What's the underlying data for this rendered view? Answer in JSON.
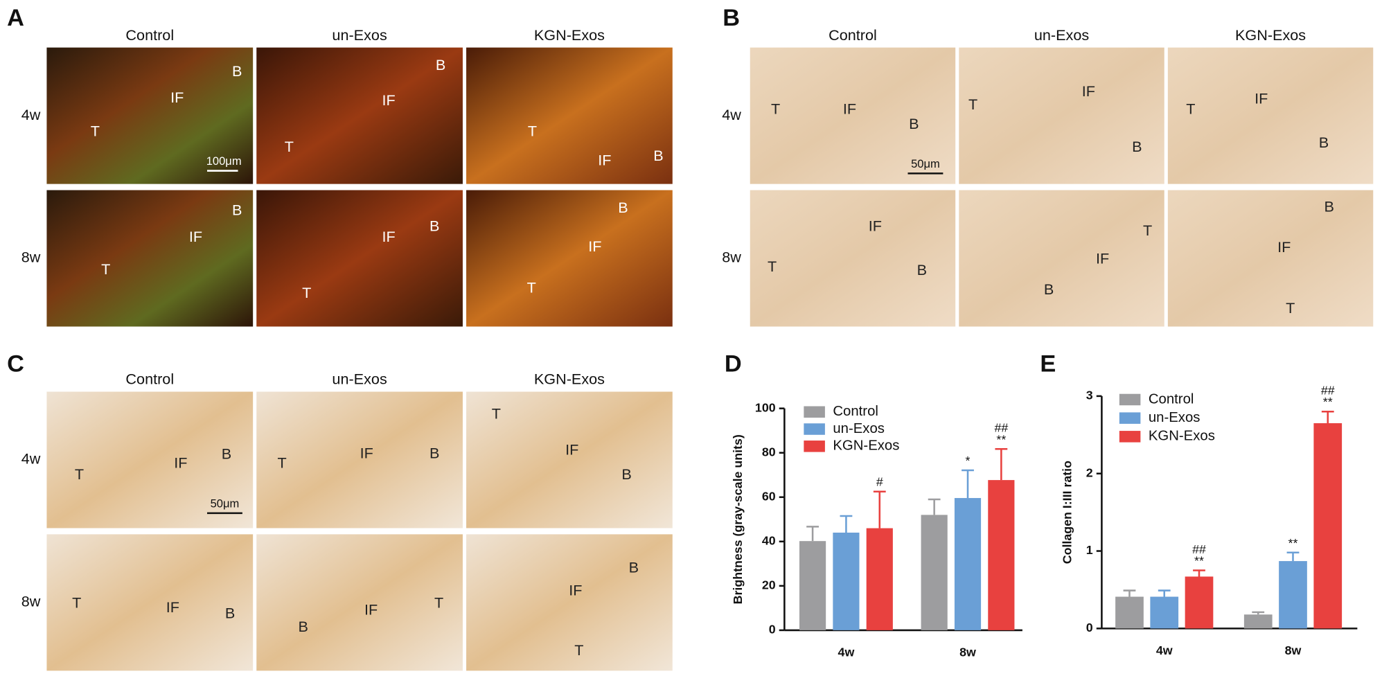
{
  "panels": [
    {
      "label": "A",
      "columns": [
        "Control",
        "un-Exos",
        "KGN-Exos"
      ],
      "rows": [
        "4w",
        "8w"
      ],
      "scale_bar": "100μm",
      "images": [
        [
          [
            "B",
            "IF",
            "T"
          ],
          [
            "B",
            "IF",
            "T"
          ],
          [
            "T",
            "IF",
            "B"
          ]
        ],
        [
          [
            "B",
            "IF",
            "T"
          ],
          [
            "IF",
            "B",
            "T"
          ],
          [
            "B",
            "IF",
            "T"
          ]
        ]
      ]
    },
    {
      "label": "B",
      "columns": [
        "Control",
        "un-Exos",
        "KGN-Exos"
      ],
      "rows": [
        "4w",
        "8w"
      ],
      "scale_bar": "50μm",
      "images": [
        [
          [
            "T",
            "IF",
            "B"
          ],
          [
            "T",
            "IF",
            "B"
          ],
          [
            "T",
            "IF",
            "B"
          ]
        ],
        [
          [
            "IF",
            "T",
            "B"
          ],
          [
            "T",
            "IF",
            "B"
          ],
          [
            "B",
            "IF",
            "T"
          ]
        ]
      ]
    },
    {
      "label": "C",
      "columns": [
        "Control",
        "un-Exos",
        "KGN-Exos"
      ],
      "rows": [
        "4w",
        "8w"
      ],
      "scale_bar": "50μm",
      "images": [
        [
          [
            "T",
            "IF",
            "B"
          ],
          [
            "T",
            "IF",
            "B"
          ],
          [
            "T",
            "IF",
            "B"
          ]
        ],
        [
          [
            "T",
            "IF",
            "B"
          ],
          [
            "IF",
            "B",
            "T"
          ],
          [
            "B",
            "IF",
            "T"
          ]
        ]
      ]
    }
  ],
  "chart_data": [
    {
      "type": "bar",
      "panel_label": "D",
      "y_label": "Brightness (gray-scale units)",
      "categories": [
        "4w",
        "8w"
      ],
      "ylim": [
        0,
        100
      ],
      "yticks": [
        0,
        20,
        40,
        60,
        80,
        100
      ],
      "legend": "upper left",
      "series": [
        {
          "name": "Control",
          "color": "#9d9d9f",
          "values": [
            40.2,
            52
          ],
          "errors": [
            6.5,
            7
          ]
        },
        {
          "name": "un-Exos",
          "color": "#6a9fd6",
          "values": [
            44,
            59.6
          ],
          "errors": [
            7.5,
            12.5
          ],
          "annotations": [
            null,
            [
              "*"
            ]
          ]
        },
        {
          "name": "KGN-Exos",
          "color": "#e8413f",
          "values": [
            46,
            67.7
          ],
          "errors": [
            16.5,
            14
          ],
          "annotations": [
            [
              "#"
            ],
            [
              "##",
              "**"
            ]
          ]
        }
      ]
    },
    {
      "type": "bar",
      "panel_label": "E",
      "y_label": "Collagen I:III ratio",
      "categories": [
        "4w",
        "8w"
      ],
      "ylim": [
        0,
        3
      ],
      "yticks": [
        0,
        1,
        2,
        3
      ],
      "legend": "upper left",
      "series": [
        {
          "name": "Control",
          "color": "#9d9d9f",
          "values": [
            0.41,
            0.18
          ],
          "errors": [
            0.08,
            0.03
          ]
        },
        {
          "name": "un-Exos",
          "color": "#6a9fd6",
          "values": [
            0.41,
            0.87
          ],
          "errors": [
            0.08,
            0.11
          ],
          "annotations": [
            null,
            [
              "**"
            ]
          ]
        },
        {
          "name": "KGN-Exos",
          "color": "#e8413f",
          "values": [
            0.67,
            2.65
          ],
          "errors": [
            0.08,
            0.15
          ],
          "annotations": [
            [
              "##",
              "**"
            ],
            [
              "##",
              "**"
            ]
          ]
        }
      ]
    }
  ]
}
